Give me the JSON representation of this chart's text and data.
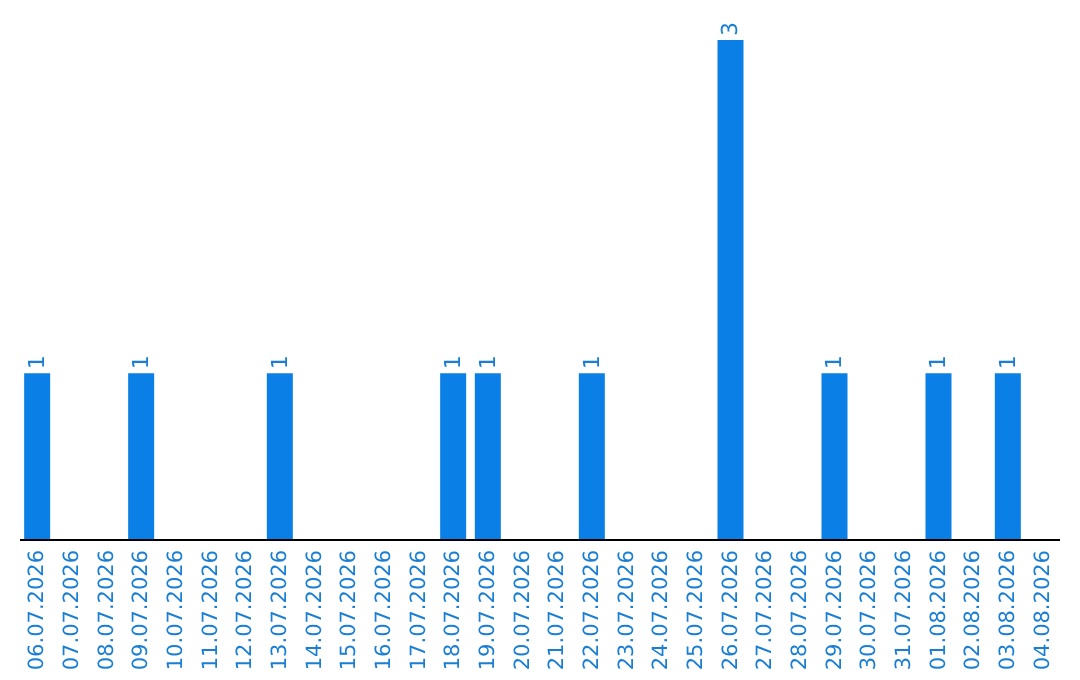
{
  "chart_data": {
    "type": "bar",
    "categories": [
      "06.07.2026",
      "07.07.2026",
      "08.07.2026",
      "09.07.2026",
      "10.07.2026",
      "11.07.2026",
      "12.07.2026",
      "13.07.2026",
      "14.07.2026",
      "15.07.2026",
      "16.07.2026",
      "17.07.2026",
      "18.07.2026",
      "19.07.2026",
      "20.07.2026",
      "21.07.2026",
      "22.07.2026",
      "23.07.2026",
      "24.07.2026",
      "25.07.2026",
      "26.07.2026",
      "27.07.2026",
      "28.07.2026",
      "29.07.2026",
      "30.07.2026",
      "31.07.2026",
      "01.08.2026",
      "02.08.2026",
      "03.08.2026",
      "04.08.2026"
    ],
    "values": [
      1,
      0,
      0,
      1,
      0,
      0,
      0,
      1,
      0,
      0,
      0,
      0,
      1,
      1,
      0,
      0,
      1,
      0,
      0,
      0,
      3,
      0,
      0,
      1,
      0,
      0,
      1,
      0,
      1,
      0
    ],
    "value_labels": [
      "1",
      null,
      null,
      "1",
      null,
      null,
      null,
      "1",
      null,
      null,
      null,
      null,
      "1",
      "1",
      null,
      null,
      "1",
      null,
      null,
      null,
      "3",
      null,
      null,
      "1",
      null,
      null,
      "1",
      null,
      "1",
      null
    ],
    "color": "#0a7fe6",
    "ylim": [
      0,
      3
    ],
    "tick_labels": "x"
  }
}
